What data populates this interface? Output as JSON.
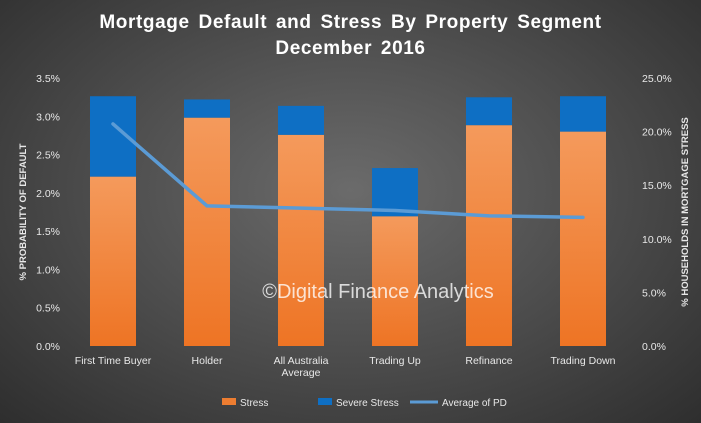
{
  "chart_data": {
    "type": "bar",
    "title": "Mortgage Default and Stress By Property Segment",
    "subtitle": "December 2016",
    "ylabel_left": "% PROBABILITY OF DEFAULT",
    "ylabel_right": "% HOUSEHOLDS IN MORTGAGE STRESS",
    "categories": [
      [
        "First Time Buyer"
      ],
      [
        "Holder"
      ],
      [
        "All Australia",
        "Average"
      ],
      [
        "Trading Up"
      ],
      [
        "Refinance"
      ],
      [
        "Trading Down"
      ]
    ],
    "stacked": true,
    "series": [
      {
        "name": "Stress",
        "axis": "right",
        "kind": "bar",
        "color": "#ED7D31",
        "values": [
          15.8,
          21.3,
          19.7,
          12.1,
          20.6,
          20.0
        ]
      },
      {
        "name": "Severe Stress",
        "axis": "right",
        "kind": "bar",
        "color": "#0E6FC4",
        "values": [
          7.5,
          1.7,
          2.7,
          4.5,
          2.6,
          3.3
        ]
      },
      {
        "name": "Average of PD",
        "axis": "left",
        "kind": "line",
        "color": "#5B9BD5",
        "values": [
          2.9,
          1.83,
          1.8,
          1.77,
          1.7,
          1.68
        ]
      }
    ],
    "left_axis": {
      "min": 0,
      "max": 3.5,
      "step": 0.5,
      "ticks": [
        "0.0%",
        "0.5%",
        "1.0%",
        "1.5%",
        "2.0%",
        "2.5%",
        "3.0%",
        "3.5%"
      ]
    },
    "right_axis": {
      "min": 0,
      "max": 25,
      "step": 5,
      "ticks": [
        "0.0%",
        "5.0%",
        "10.0%",
        "15.0%",
        "20.0%",
        "25.0%"
      ]
    },
    "grid": false,
    "legend_position": "bottom",
    "watermark": "©Digital Finance Analytics"
  }
}
